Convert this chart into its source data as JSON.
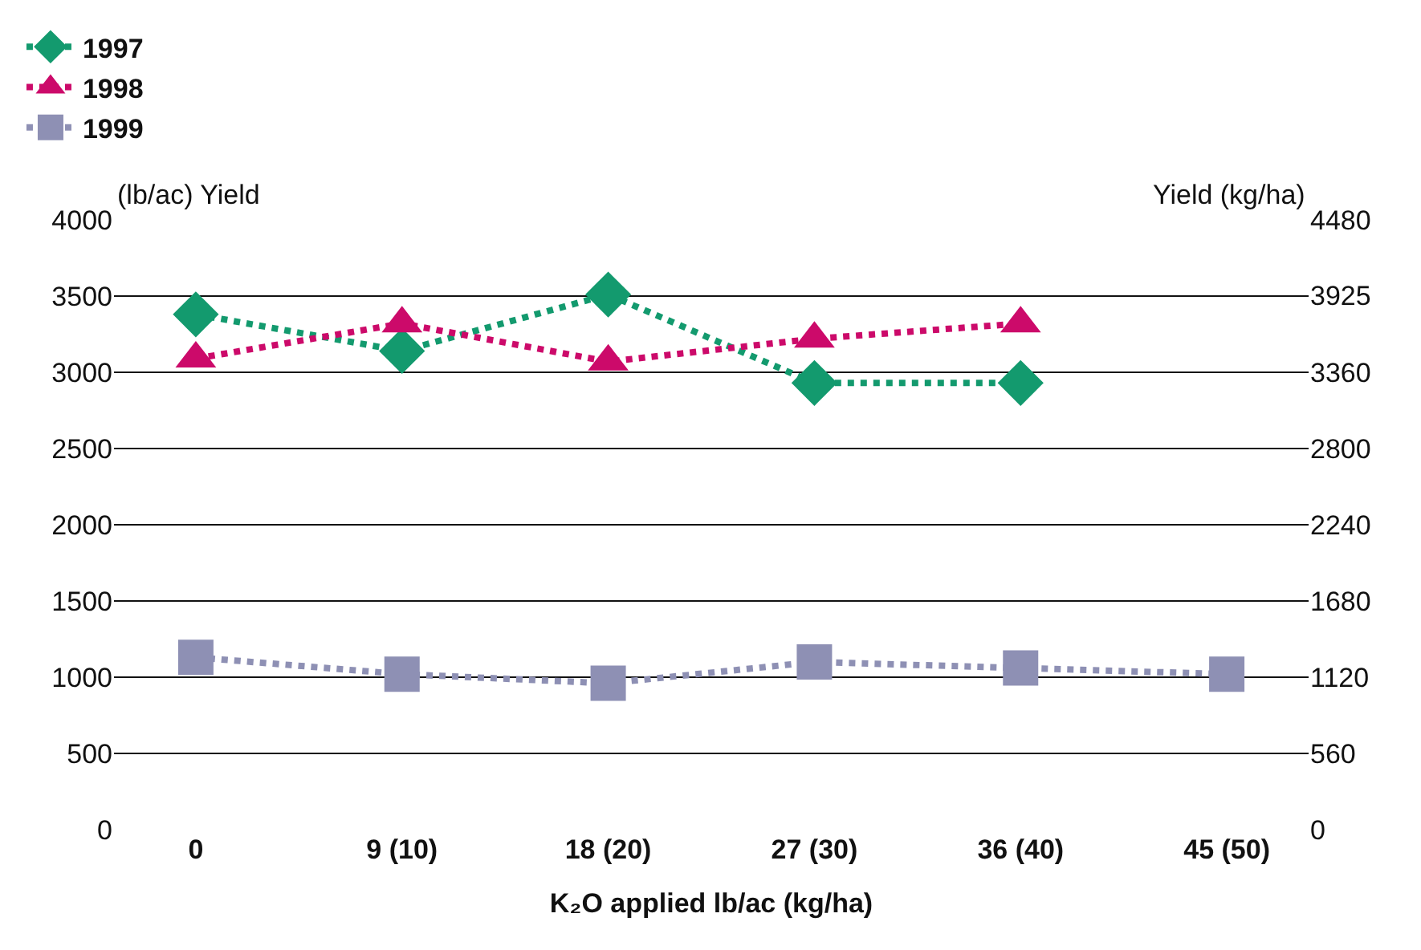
{
  "chart_data": {
    "type": "line",
    "xlabel": "K₂O applied lb/ac (kg/ha)",
    "ylabel": "(lb/ac) Yield",
    "y2label": "Yield (kg/ha)",
    "categories": [
      "0",
      "9 (10)",
      "18 (20)",
      "27 (30)",
      "36 (40)",
      "45 (50)"
    ],
    "series": [
      {
        "name": "1997",
        "color": "#139a6e",
        "marker": "diamond",
        "values": [
          3380,
          3140,
          3510,
          2930,
          2930,
          null
        ]
      },
      {
        "name": "1998",
        "color": "#cc0a6a",
        "marker": "triangle",
        "values": [
          3090,
          3320,
          3070,
          3220,
          3320,
          null
        ]
      },
      {
        "name": "1999",
        "color": "#8e90b4",
        "marker": "square",
        "values": [
          1130,
          1020,
          960,
          1100,
          1060,
          1020
        ]
      }
    ],
    "ylim": [
      0,
      4000
    ],
    "yticks": [
      0,
      500,
      1000,
      1500,
      2000,
      2500,
      3000,
      3500,
      4000
    ],
    "y2lim": [
      0,
      4480
    ],
    "y2ticks": [
      0,
      560,
      1120,
      1680,
      2240,
      2800,
      3360,
      3925,
      4480
    ],
    "grid": "y",
    "legend": "top left",
    "line_style": "dotted"
  }
}
